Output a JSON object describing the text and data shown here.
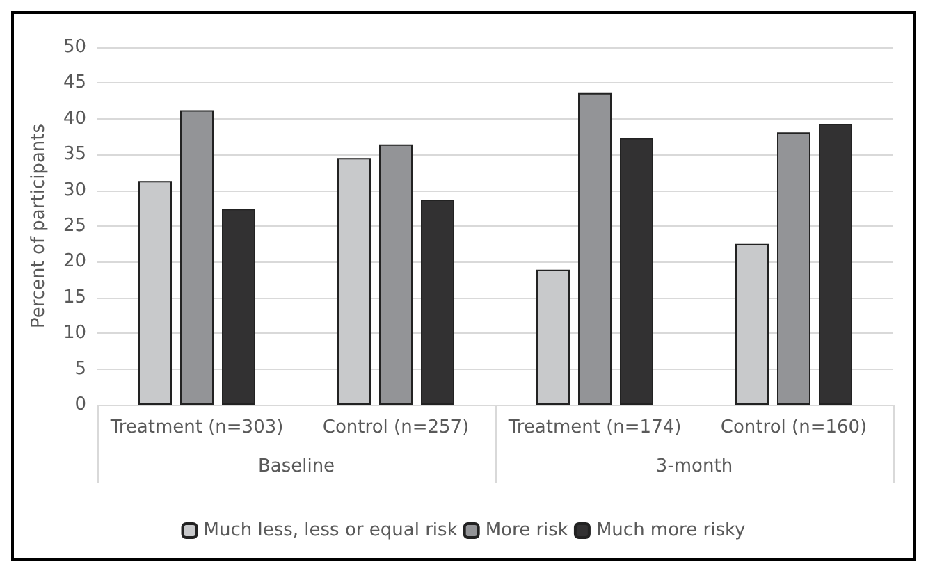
{
  "chart_data": {
    "type": "bar",
    "ylabel": "Percent of participants",
    "categories": [
      "Treatment (n=303)",
      "Control (n=257)",
      "Treatment (n=174)",
      "Control (n=160)"
    ],
    "annotations": [
      "Baseline",
      "3-month"
    ],
    "series": [
      {
        "name": "Much less, less or equal risk",
        "color": "#c8c9cb",
        "values": [
          31.3,
          34.5,
          18.9,
          22.5
        ]
      },
      {
        "name": "More risk",
        "color": "#939497",
        "values": [
          41.2,
          36.4,
          43.6,
          38.1
        ]
      },
      {
        "name": "Much more risky",
        "color": "#323132",
        "values": [
          27.4,
          28.7,
          37.3,
          39.3
        ]
      }
    ],
    "ylim": [
      0,
      50
    ],
    "yticks": [
      0,
      5,
      10,
      15,
      20,
      25,
      30,
      35,
      40,
      45,
      50
    ],
    "grid": "y",
    "legend": "bottom"
  }
}
